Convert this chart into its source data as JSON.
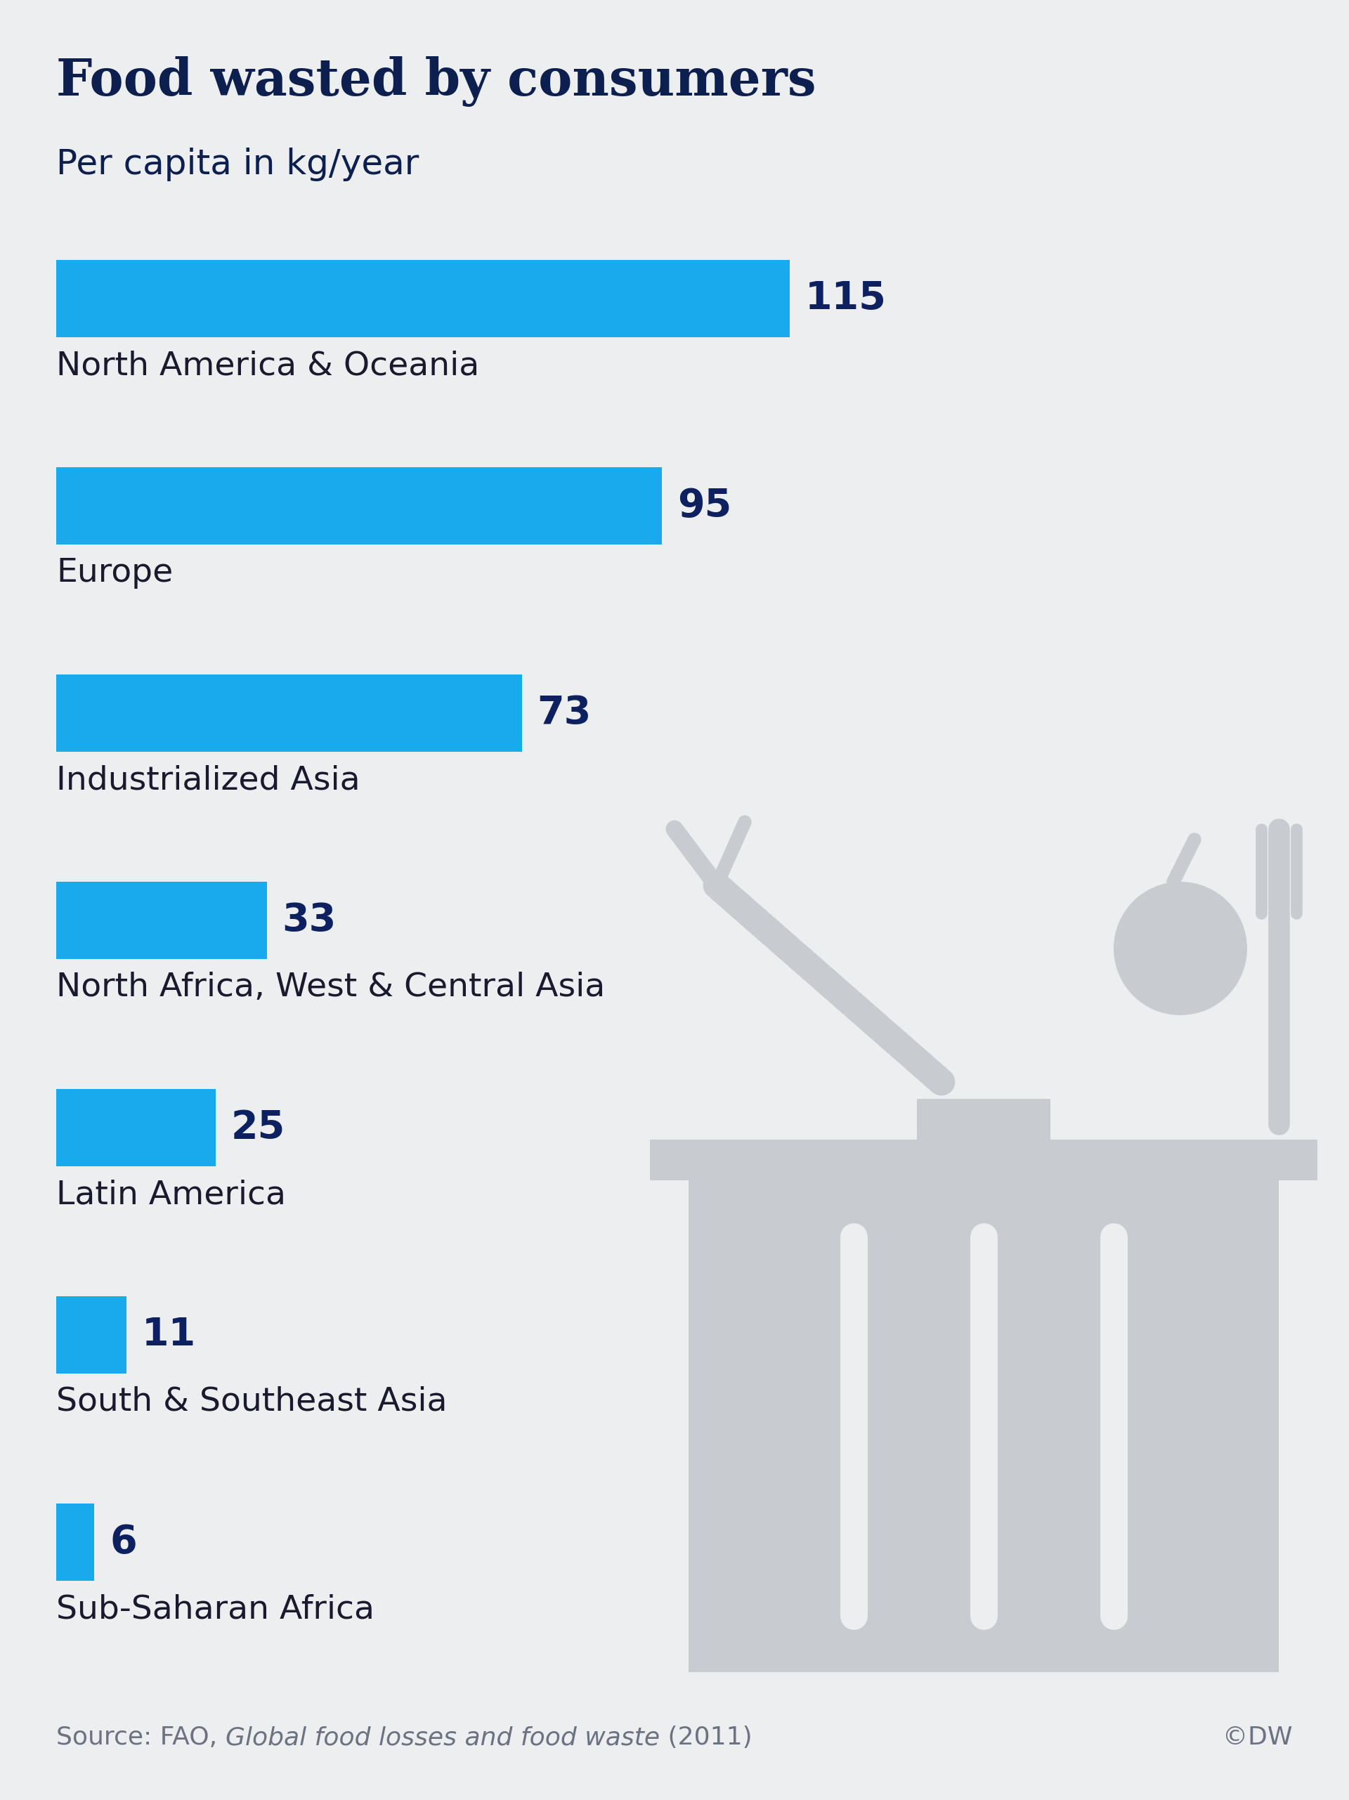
{
  "title": "Food wasted by consumers",
  "subtitle": "Per capita in kg/year",
  "categories": [
    "North America & Oceania",
    "Europe",
    "Industrialized Asia",
    "North Africa, West & Central Asia",
    "Latin America",
    "South & Southeast Asia",
    "Sub-Saharan Africa"
  ],
  "values": [
    115,
    95,
    73,
    33,
    25,
    11,
    6
  ],
  "bar_color": "#18AAEC",
  "background_color": "#ECEEF0",
  "title_color": "#0D1F4E",
  "subtitle_color": "#0D1F4E",
  "label_color": "#1A1A2E",
  "value_color": "#0D2060",
  "source_color": "#6B7280",
  "copyright_color": "#6B7280",
  "source_text": "Source: FAO, ",
  "source_italic": "Global food losses and food waste",
  "source_end": " (2011)",
  "copyright_text": "©DW",
  "max_value": 130,
  "title_fontsize": 52,
  "subtitle_fontsize": 36,
  "category_fontsize": 34,
  "value_fontsize": 40,
  "source_fontsize": 26,
  "icon_color": "#C8CBD0"
}
